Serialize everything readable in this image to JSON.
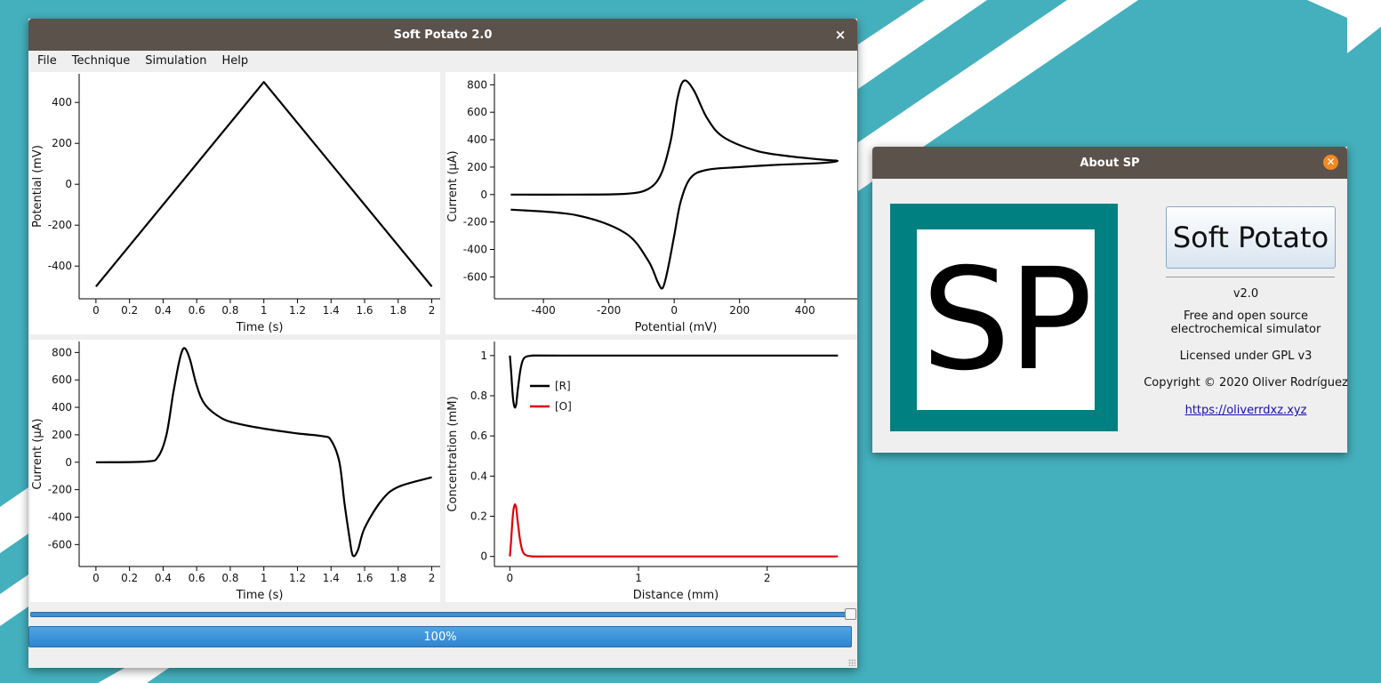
{
  "main_window": {
    "title": "Soft Potato 2.0",
    "close_glyph": "×",
    "menu": [
      "File",
      "Technique",
      "Simulation",
      "Help"
    ],
    "progress_text": "100%",
    "slider_position": 1.0,
    "progress": 1.0
  },
  "about_window": {
    "title": "About SP",
    "close_glyph": "✕",
    "logo_text": "SP",
    "app_name_button": "Soft Potato",
    "version": "v2.0",
    "description_line1": "Free and open source",
    "description_line2": "electrochemical simulator",
    "license": "Licensed under GPL v3",
    "copyright": "Copyright © 2020 Oliver Rodríguez",
    "link": "https://oliverrdxz.xyz"
  },
  "colors": {
    "titlebar": "#5b524b",
    "desktop": "#44b0bd",
    "logo_teal": "#008080",
    "series_black": "#000000",
    "series_red": "#e0000a",
    "progress": "#3d8fd4"
  },
  "chart_data": [
    {
      "id": "potential-time",
      "type": "line",
      "xlabel": "Time (s)",
      "ylabel": "Potential (mV)",
      "xlim": [
        -0.1,
        2.05
      ],
      "ylim": [
        -560,
        540
      ],
      "xticks": [
        0,
        0.2,
        0.4,
        0.6,
        0.8,
        1,
        1.2,
        1.4,
        1.6,
        1.8,
        2
      ],
      "yticks": [
        -400,
        -200,
        0,
        200,
        400
      ],
      "series": [
        {
          "color": "#000000",
          "x": [
            0,
            1,
            2
          ],
          "y": [
            -500,
            500,
            -500
          ]
        }
      ]
    },
    {
      "id": "current-potential",
      "type": "line",
      "xlabel": "Potential (mV)",
      "ylabel": "Current (µA)",
      "xlim": [
        -550,
        560
      ],
      "ylim": [
        -760,
        880
      ],
      "xticks": [
        -400,
        -200,
        0,
        200,
        400
      ],
      "yticks": [
        -600,
        -400,
        -200,
        0,
        200,
        400,
        600,
        800
      ],
      "series": [
        {
          "color": "#000000",
          "x": [
            -500,
            -300,
            -150,
            -80,
            -40,
            -10,
            10,
            30,
            60,
            100,
            150,
            250,
            350,
            450,
            500,
            450,
            300,
            200,
            100,
            50,
            20,
            0,
            -20,
            -35,
            -50,
            -80,
            -150,
            -300,
            -500
          ],
          "y": [
            0,
            0,
            5,
            40,
            150,
            400,
            700,
            830,
            760,
            560,
            420,
            320,
            280,
            255,
            245,
            230,
            215,
            200,
            180,
            120,
            -50,
            -300,
            -550,
            -680,
            -640,
            -480,
            -280,
            -150,
            -110
          ]
        }
      ]
    },
    {
      "id": "current-time",
      "type": "line",
      "xlabel": "Time (s)",
      "ylabel": "Current (µA)",
      "xlim": [
        -0.1,
        2.05
      ],
      "ylim": [
        -760,
        880
      ],
      "xticks": [
        0,
        0.2,
        0.4,
        0.6,
        0.8,
        1,
        1.2,
        1.4,
        1.6,
        1.8,
        2
      ],
      "yticks": [
        -600,
        -400,
        -200,
        0,
        200,
        400,
        600,
        800
      ],
      "series": [
        {
          "color": "#000000",
          "x": [
            0,
            0.3,
            0.37,
            0.42,
            0.46,
            0.49,
            0.51,
            0.53,
            0.56,
            0.6,
            0.65,
            0.75,
            0.85,
            1.0,
            1.2,
            1.35,
            1.4,
            1.45,
            1.48,
            1.51,
            1.53,
            1.56,
            1.6,
            1.7,
            1.8,
            2.0
          ],
          "y": [
            0,
            5,
            40,
            200,
            500,
            700,
            800,
            830,
            750,
            560,
            420,
            320,
            280,
            245,
            210,
            190,
            160,
            0,
            -300,
            -550,
            -680,
            -640,
            -480,
            -280,
            -180,
            -110
          ]
        }
      ]
    },
    {
      "id": "concentration-distance",
      "type": "line",
      "xlabel": "Distance (mm)",
      "ylabel": "Concentration (mM)",
      "xlim": [
        -0.12,
        2.7
      ],
      "ylim": [
        -0.05,
        1.07
      ],
      "xticks": [
        0,
        1,
        2
      ],
      "yticks": [
        0,
        0.2,
        0.4,
        0.6,
        0.8,
        1
      ],
      "legend": [
        {
          "label": "[R]",
          "color": "#000000"
        },
        {
          "label": "[O]",
          "color": "#e0000a"
        }
      ],
      "series": [
        {
          "name": "[R]",
          "color": "#000000",
          "x": [
            0,
            0.01,
            0.02,
            0.03,
            0.04,
            0.05,
            0.06,
            0.08,
            0.1,
            0.13,
            0.2,
            0.4,
            2.55
          ],
          "y": [
            1.0,
            0.92,
            0.82,
            0.76,
            0.74,
            0.76,
            0.82,
            0.92,
            0.975,
            0.995,
            1.0,
            1.0,
            1.0
          ]
        },
        {
          "name": "[O]",
          "color": "#e0000a",
          "x": [
            0,
            0.01,
            0.02,
            0.03,
            0.04,
            0.05,
            0.06,
            0.08,
            0.1,
            0.13,
            0.2,
            0.4,
            2.55
          ],
          "y": [
            0.0,
            0.08,
            0.18,
            0.24,
            0.26,
            0.24,
            0.18,
            0.08,
            0.025,
            0.005,
            0.0,
            0.0,
            0.0
          ]
        }
      ]
    }
  ]
}
